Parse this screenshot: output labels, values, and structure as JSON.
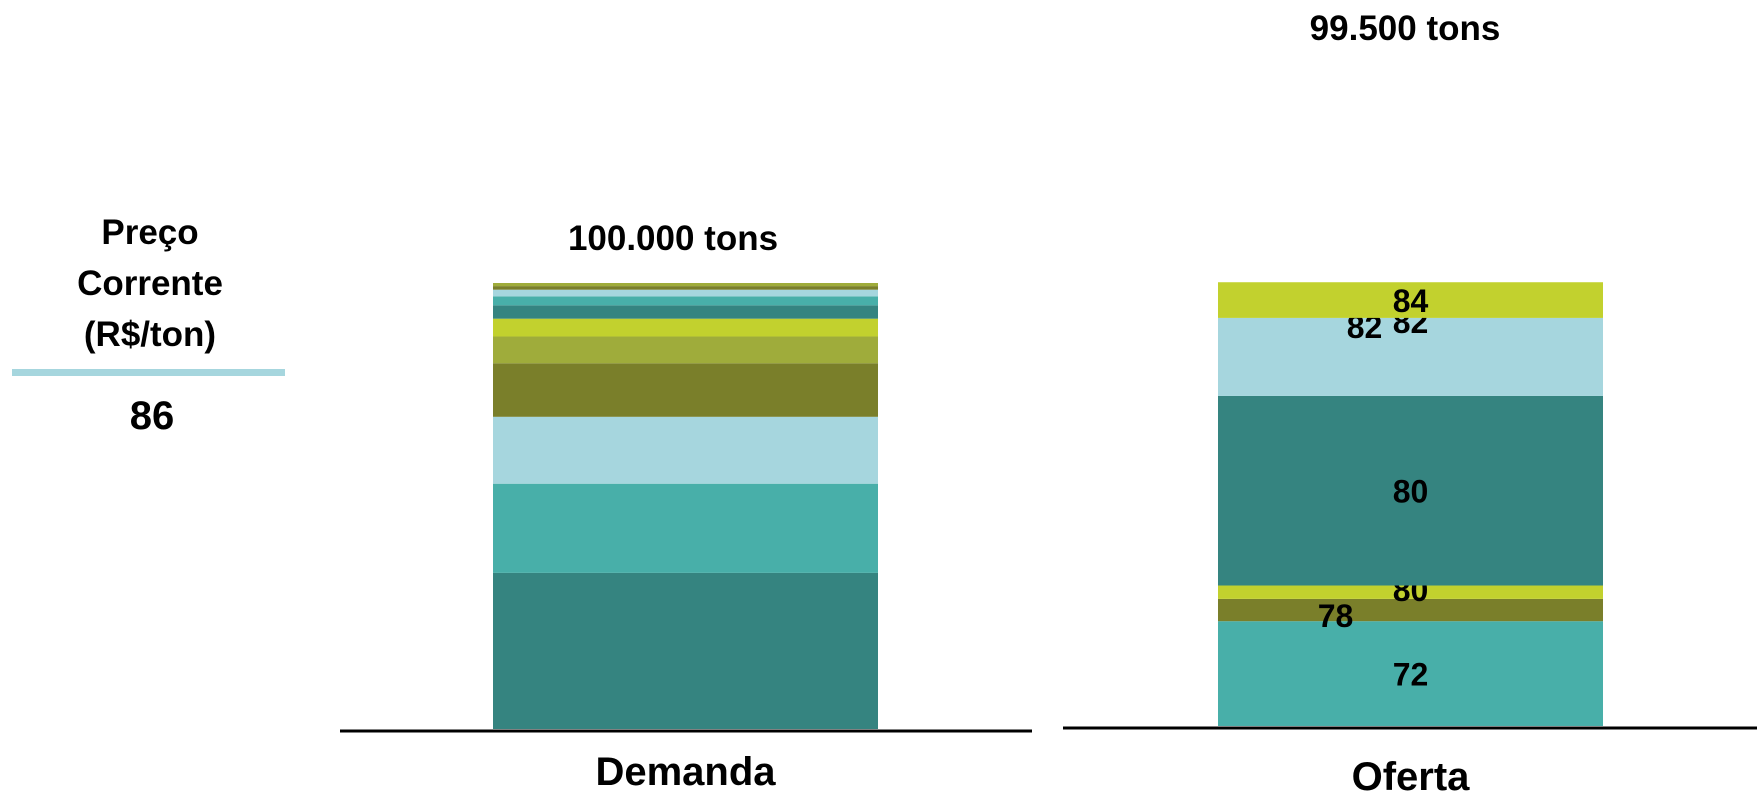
{
  "price_panel": {
    "title_lines": [
      "Preço",
      "Corrente",
      "(R$/ton)"
    ],
    "value": "86",
    "divider_color": "#a6d6de"
  },
  "chart_data": [
    {
      "type": "bar",
      "stacked": true,
      "category": "Demanda",
      "total_label": "100.000 tons",
      "baseline_color": "#000000",
      "segments": [
        {
          "value": 35.0,
          "color": "#358480"
        },
        {
          "value": 20.0,
          "color": "#48afa9"
        },
        {
          "value": 15.0,
          "color": "#a6d6de"
        },
        {
          "value": 12.0,
          "color": "#7a7f2a"
        },
        {
          "value": 6.0,
          "color": "#9fac3b"
        },
        {
          "value": 4.0,
          "color": "#c2d12e"
        },
        {
          "value": 3.0,
          "color": "#358480"
        },
        {
          "value": 2.0,
          "color": "#48afa9"
        },
        {
          "value": 1.5,
          "color": "#a6d6de"
        },
        {
          "value": 0.8,
          "color": "#7a7f2a"
        },
        {
          "value": 0.7,
          "color": "#9fac3b"
        }
      ]
    },
    {
      "type": "bar",
      "stacked": true,
      "category": "Oferta",
      "total_label": "99.500 tons",
      "baseline_color": "#000000",
      "segments": [
        {
          "value": 23.5,
          "color": "#48afa9",
          "label": "72"
        },
        {
          "value": 5.0,
          "color": "#7a7f2a",
          "label": "78"
        },
        {
          "value": 3.0,
          "color": "#c2d12e",
          "label": "80"
        },
        {
          "value": 42.5,
          "color": "#358480",
          "label": "80"
        },
        {
          "value": 17.5,
          "color": "#a6d6de",
          "label": "82",
          "extra_label": "82"
        },
        {
          "value": 8.0,
          "color": "#c2d12e",
          "label": "84"
        }
      ]
    }
  ]
}
